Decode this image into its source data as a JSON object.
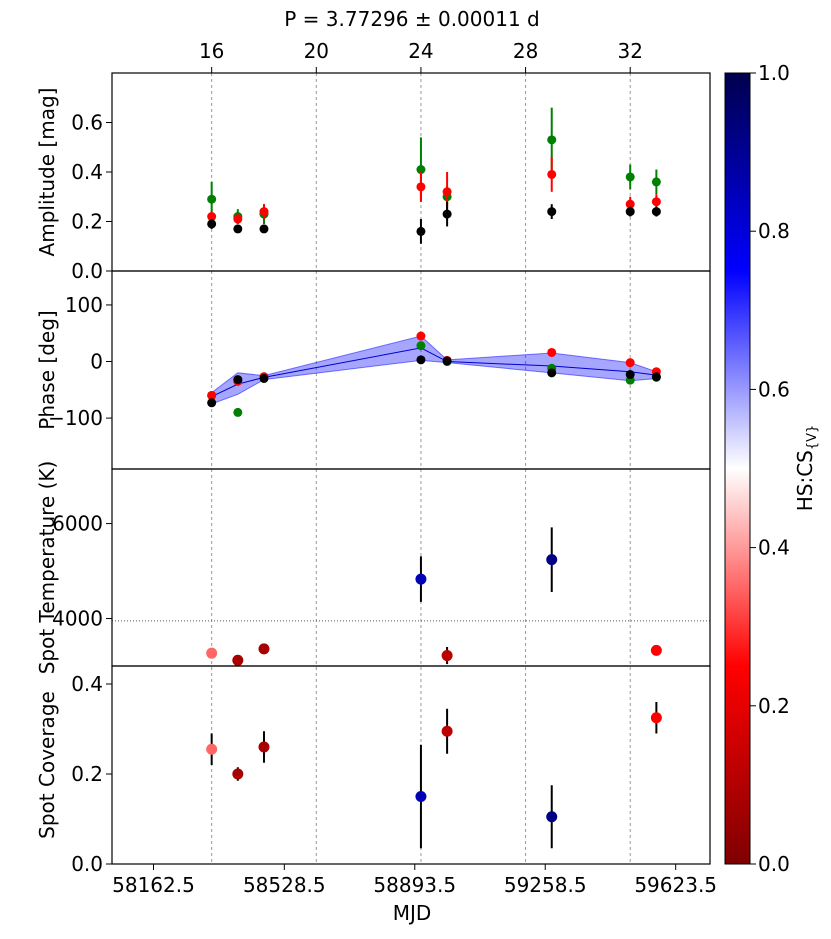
{
  "chart_data": {
    "type": "scatter",
    "title": "P = 3.77296 ± 0.00011 d",
    "xlabel": "MJD",
    "x_ticks": [
      "58162.5",
      "58528.5",
      "58893.5",
      "59258.5",
      "59623.5"
    ],
    "x_tick_values": [
      58162.5,
      58528.5,
      58893.5,
      59258.5,
      59623.5
    ],
    "xlim": [
      58046.4,
      59719.5
    ],
    "top_axis": {
      "ticks": [
        "16",
        "20",
        "24",
        "28",
        "32"
      ],
      "tick_values": [
        16,
        20,
        24,
        28,
        32
      ],
      "lim": [
        12.19,
        35.05
      ]
    },
    "colorbar": {
      "label": "HS:CS",
      "label_sub": "{V}",
      "range": [
        0.0,
        1.0
      ],
      "ticks": [
        "0.0",
        "0.2",
        "0.4",
        "0.6",
        "0.8",
        "1.0"
      ],
      "tick_values": [
        0.0,
        0.2,
        0.4,
        0.6,
        0.8,
        1.0
      ],
      "colormap": "seismic_r"
    },
    "colors": {
      "green": "#008000",
      "red": "#ff0000",
      "black": "#000000",
      "band": "#0000ff"
    },
    "panels": [
      {
        "id": "amplitude",
        "ylabel": "Amplitude [mag]",
        "ylim": [
          0.0,
          0.8
        ],
        "y_ticks": [
          "0.0",
          "0.2",
          "0.4",
          "0.6"
        ],
        "y_tick_values": [
          0.0,
          0.2,
          0.4,
          0.6
        ],
        "series": [
          {
            "name": "green",
            "x": [
              16,
              17,
              18,
              24,
              25,
              29,
              32,
              33
            ],
            "y": [
              0.29,
              0.22,
              0.23,
              0.41,
              0.3,
              0.53,
              0.38,
              0.36
            ],
            "err": [
              0.07,
              0.03,
              0.04,
              0.13,
              0.04,
              0.13,
              0.05,
              0.05
            ]
          },
          {
            "name": "red",
            "x": [
              16,
              17,
              18,
              24,
              25,
              29,
              32,
              33
            ],
            "y": [
              0.22,
              0.21,
              0.24,
              0.34,
              0.32,
              0.39,
              0.27,
              0.28
            ],
            "err": [
              0.02,
              0.02,
              0.03,
              0.06,
              0.08,
              0.07,
              0.03,
              0.03
            ]
          },
          {
            "name": "black",
            "x": [
              16,
              17,
              18,
              24,
              25,
              29,
              32,
              33
            ],
            "y": [
              0.19,
              0.17,
              0.17,
              0.16,
              0.23,
              0.24,
              0.24,
              0.24
            ],
            "err": [
              0.02,
              0.01,
              0.01,
              0.05,
              0.05,
              0.03,
              0.02,
              0.02
            ]
          }
        ]
      },
      {
        "id": "phase",
        "ylabel": "Phase [deg]",
        "ylim": [
          -190,
          160
        ],
        "y_ticks": [
          "100",
          "0",
          "−100"
        ],
        "y_tick_values": [
          100,
          0,
          -100
        ],
        "band": {
          "x": [
            16,
            17,
            18,
            24,
            25,
            29,
            32,
            33
          ],
          "mid": [
            -62,
            -40,
            -28,
            24,
            0,
            -8,
            -18,
            -24
          ],
          "lower": [
            -75,
            -58,
            -32,
            2,
            -2,
            -20,
            -34,
            -30
          ],
          "upper": [
            -55,
            -20,
            -25,
            45,
            3,
            15,
            -2,
            -18
          ]
        },
        "series": [
          {
            "name": "green",
            "x": [
              16,
              17,
              18,
              24,
              25,
              29,
              32,
              33
            ],
            "y": [
              -60,
              -90,
              -27,
              28,
              0,
              -12,
              -33,
              -28
            ]
          },
          {
            "name": "red",
            "x": [
              16,
              17,
              18,
              24,
              25,
              29,
              32,
              33
            ],
            "y": [
              -60,
              -35,
              -27,
              45,
              2,
              16,
              -2,
              -18
            ]
          },
          {
            "name": "black",
            "x": [
              16,
              17,
              18,
              24,
              25,
              29,
              32,
              33
            ],
            "y": [
              -73,
              -32,
              -30,
              3,
              1,
              -20,
              -23,
              -27
            ]
          }
        ]
      },
      {
        "id": "spot_temperature",
        "ylabel": "Spot Temperature (K)",
        "ylim": [
          3000,
          7150
        ],
        "y_ticks": [
          "6000",
          "4000"
        ],
        "y_tick_values": [
          6000,
          4000
        ],
        "hline": 3950,
        "points": {
          "x": [
            16,
            17,
            18,
            24,
            25,
            29,
            33
          ],
          "y": [
            3270,
            3120,
            3360,
            4830,
            3220,
            5240,
            3330
          ],
          "err": [
            50,
            80,
            40,
            480,
            180,
            680,
            30
          ],
          "c": [
            0.35,
            0.08,
            0.08,
            0.85,
            0.12,
            0.92,
            0.25
          ]
        }
      },
      {
        "id": "spot_coverage",
        "ylabel": "Spot Coverage",
        "ylim": [
          0.0,
          0.44
        ],
        "y_ticks": [
          "0.0",
          "0.2",
          "0.4"
        ],
        "y_tick_values": [
          0.0,
          0.2,
          0.4
        ],
        "points": {
          "x": [
            16,
            17,
            18,
            24,
            25,
            29,
            33
          ],
          "y": [
            0.255,
            0.2,
            0.26,
            0.15,
            0.295,
            0.105,
            0.325
          ],
          "err": [
            0.035,
            0.015,
            0.035,
            0.115,
            0.05,
            0.07,
            0.035
          ],
          "c": [
            0.35,
            0.08,
            0.08,
            0.85,
            0.12,
            0.92,
            0.25
          ]
        }
      }
    ]
  }
}
